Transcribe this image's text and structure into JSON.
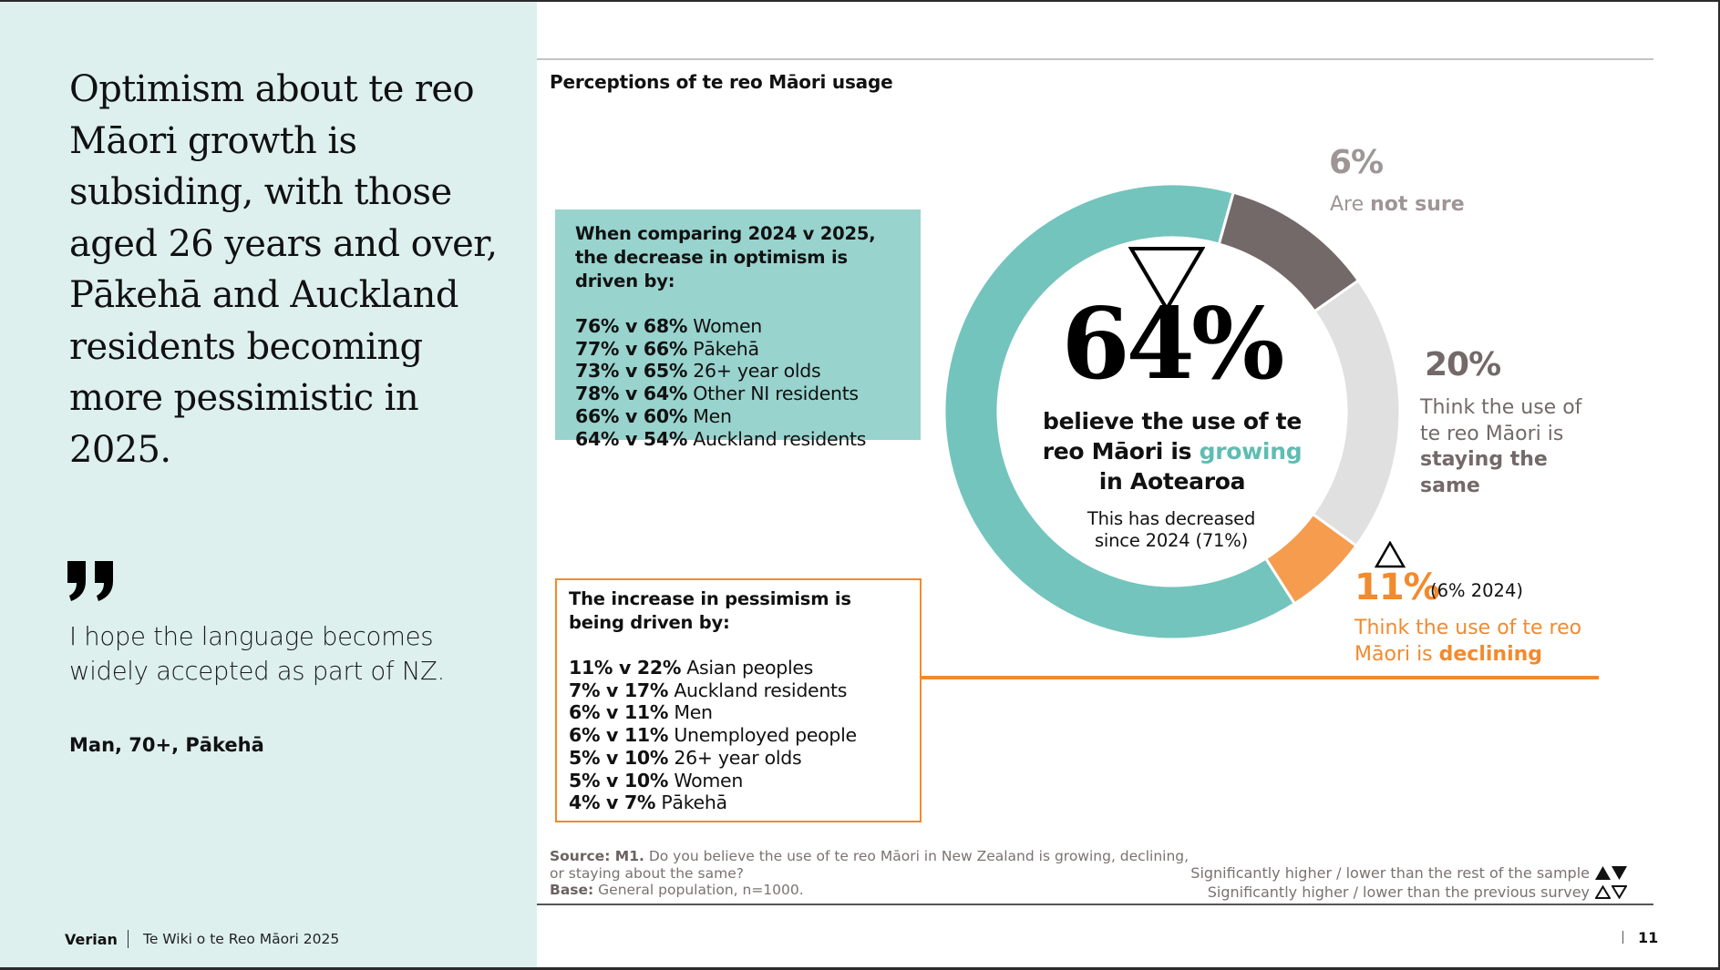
{
  "left_panel": {
    "headline": "Optimism about te reo Māori growth is subsiding, with those aged 26 years and over, Pākehā and Auckland residents becoming more pessimistic in 2025.",
    "quote_icon": "closing-quote-icon",
    "quote": "I hope the language becomes widely accepted as part of NZ.",
    "quote_attribution": "Man, 70+, Pākehā",
    "footer_brand": "Verian",
    "footer_title": "Te Wiki o te Reo Māori 2025"
  },
  "section_title": "Perceptions of te reo Māori usage",
  "optimism_box": {
    "heading": "When comparing 2024 v 2025, the decrease in optimism is driven by:",
    "rows": [
      {
        "values": "76% v 68%",
        "group": "Women"
      },
      {
        "values": "77% v 66%",
        "group": "Pākehā"
      },
      {
        "values": "73% v 65%",
        "group": "26+ year olds"
      },
      {
        "values": "78% v 64%",
        "group": "Other NI residents"
      },
      {
        "values": "66% v 60%",
        "group": "Men"
      },
      {
        "values": "64% v 54%",
        "group": "Auckland residents"
      }
    ]
  },
  "pessimism_box": {
    "heading": "The increase in pessimism is being driven by:",
    "rows": [
      {
        "values": "11% v 22%",
        "group": "Asian peoples"
      },
      {
        "values": "7% v 17%",
        "group": "Auckland residents"
      },
      {
        "values": "6% v 11%",
        "group": "Men"
      },
      {
        "values": "6% v 11%",
        "group": "Unemployed people"
      },
      {
        "values": "5% v 10%",
        "group": "26+ year olds"
      },
      {
        "values": "5% v 10%",
        "group": "Women"
      },
      {
        "values": "4% v 7%",
        "group": "Pākehā"
      }
    ]
  },
  "center": {
    "big_number": "64%",
    "change_icon": "significantly-lower-than-previous-survey-icon",
    "line1": "believe the use of te",
    "line2_prefix": "reo Māori is ",
    "line2_accent": "growing",
    "line3": "in Aotearoa",
    "sub1": "This has decreased",
    "sub2": "since 2024 (71%)"
  },
  "labels": {
    "not_sure": {
      "pct": "6%",
      "prefix": "Are ",
      "bold": "not sure"
    },
    "same": {
      "pct": "20%",
      "line1": "Think the use of",
      "line2": "te reo Māori is",
      "bold": "staying the same"
    },
    "declining": {
      "pct": "11%",
      "previous": "(6% 2024)",
      "line1": "Think the use of te reo",
      "line2_prefix": "Māori is ",
      "bold": "declining",
      "change_icon": "significantly-higher-than-previous-survey-icon"
    }
  },
  "chart_data": {
    "type": "pie",
    "variant": "donut",
    "title": "Perceptions of te reo Māori usage",
    "categories": [
      "Growing",
      "Not sure",
      "Staying the same",
      "Declining"
    ],
    "values": [
      64,
      6,
      20,
      11
    ],
    "previous_year": {
      "Growing": 71,
      "Declining": 6
    },
    "drawn_arc_shares_percent": [
      64,
      11,
      20,
      6
    ],
    "colors": [
      "#73C4BC",
      "#736968",
      "#E0E0E0",
      "#F59C4F"
    ],
    "start": "top, clockwise from growing end",
    "legend": "none (direct labels)"
  },
  "source": {
    "source_label": "Source: M1.",
    "source_text": " Do you believe the use of te reo Māori in New Zealand is growing, declining, or staying about the same?",
    "base_label": "Base:",
    "base_text": " General population, n=1000."
  },
  "legend": {
    "row1": "Significantly higher / lower than the rest of the sample",
    "row2": "Significantly higher / lower than the previous survey"
  },
  "page_number": "11",
  "colors": {
    "panel_bg": "#DDF0EE",
    "teal": "#73C4BC",
    "teal_box": "#99D3CE",
    "teal_text": "#5FBDB2",
    "orange": "#F28A2E",
    "dark_grey": "#736968",
    "light_grey": "#E0E0E0"
  }
}
